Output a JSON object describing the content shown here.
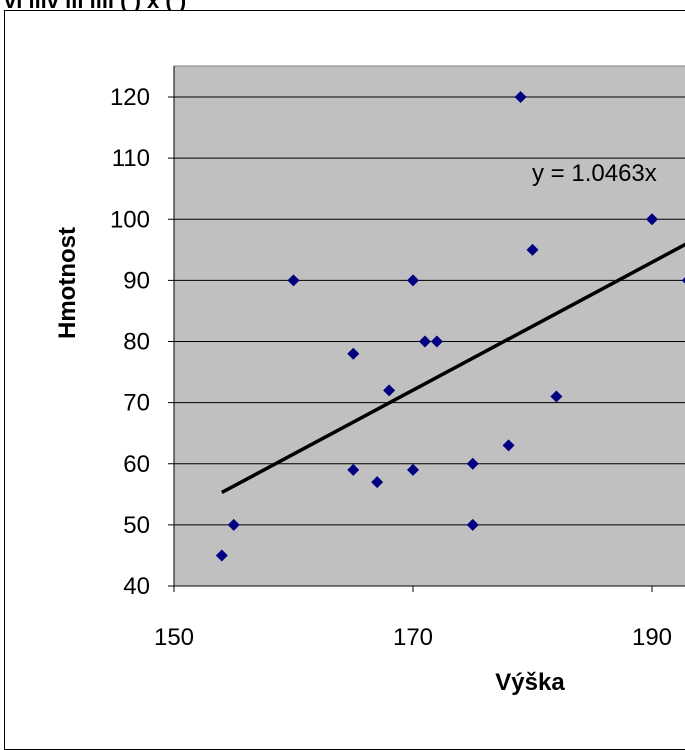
{
  "header": {
    "partial_text": "vi  lllv     lli  llll     ( ) x ( )"
  },
  "chart_data": {
    "type": "scatter",
    "xlabel": "Výška",
    "ylabel": "Hmotnost",
    "xlim": [
      150,
      193
    ],
    "ylim": [
      40,
      125
    ],
    "x_ticks": [
      "150",
      "170",
      "190"
    ],
    "y_ticks": [
      "40",
      "50",
      "60",
      "70",
      "80",
      "90",
      "100",
      "110",
      "120"
    ],
    "grid": true,
    "legend": "none",
    "colors": {
      "plot_bg": "#c0c0c0",
      "marker": "#000080",
      "trend": "#000000"
    },
    "points": [
      {
        "x": 154,
        "y": 45
      },
      {
        "x": 155,
        "y": 50
      },
      {
        "x": 160,
        "y": 90
      },
      {
        "x": 165,
        "y": 78
      },
      {
        "x": 165,
        "y": 59
      },
      {
        "x": 167,
        "y": 57
      },
      {
        "x": 168,
        "y": 72
      },
      {
        "x": 170,
        "y": 90
      },
      {
        "x": 170,
        "y": 59
      },
      {
        "x": 171,
        "y": 80
      },
      {
        "x": 172,
        "y": 80
      },
      {
        "x": 175,
        "y": 60
      },
      {
        "x": 175,
        "y": 50
      },
      {
        "x": 178,
        "y": 63
      },
      {
        "x": 179,
        "y": 120
      },
      {
        "x": 180,
        "y": 95
      },
      {
        "x": 182,
        "y": 71
      },
      {
        "x": 190,
        "y": 100
      },
      {
        "x": 193,
        "y": 90
      }
    ],
    "trendline": {
      "type": "linear",
      "equation_label": "y = 1.0463x",
      "from": {
        "x": 154,
        "y": 55.3
      },
      "to": {
        "x": 193,
        "y": 96.1
      }
    }
  }
}
